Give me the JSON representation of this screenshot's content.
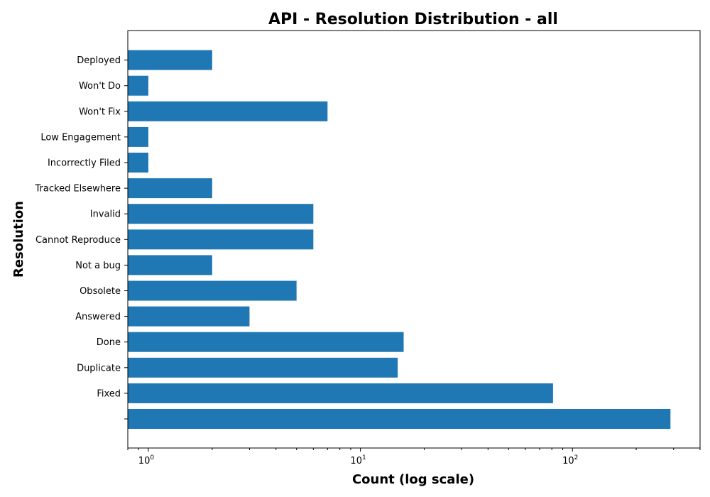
{
  "chart_data": {
    "type": "bar",
    "orientation": "horizontal",
    "title": "API - Resolution Distribution - all",
    "xlabel": "Count (log scale)",
    "ylabel": "Resolution",
    "x_scale": "log",
    "xlim": [
      0.8,
      400
    ],
    "x_ticks": [
      {
        "value": 1,
        "base": "10",
        "exp": "0"
      },
      {
        "value": 10,
        "base": "10",
        "exp": "1"
      },
      {
        "value": 100,
        "base": "10",
        "exp": "2"
      }
    ],
    "categories": [
      "",
      "Fixed",
      "Duplicate",
      "Done",
      "Answered",
      "Obsolete",
      "Not a bug",
      "Cannot Reproduce",
      "Invalid",
      "Tracked Elsewhere",
      "Incorrectly Filed",
      "Low Engagement",
      "Won't Fix",
      "Won't Do",
      "Deployed"
    ],
    "values": [
      290,
      81,
      15,
      16,
      3,
      5,
      2,
      6,
      6,
      2,
      1,
      1,
      7,
      1,
      2
    ],
    "bar_color": "#1f77b4",
    "grid": false,
    "legend": "none"
  }
}
